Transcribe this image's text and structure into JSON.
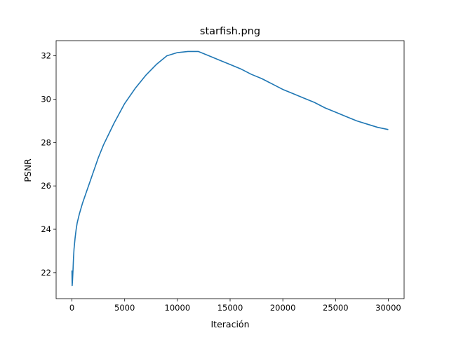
{
  "chart_data": {
    "type": "line",
    "title": "starfish.png",
    "xlabel": "Iteración",
    "ylabel": "PSNR",
    "xlim": [
      -1500,
      31500
    ],
    "ylim": [
      20.8,
      32.7
    ],
    "x_ticks": [
      0,
      5000,
      10000,
      15000,
      20000,
      25000,
      30000
    ],
    "x_tick_labels": [
      "0",
      "5000",
      "10000",
      "15000",
      "20000",
      "25000",
      "30000"
    ],
    "y_ticks": [
      22,
      24,
      26,
      28,
      30,
      32
    ],
    "y_tick_labels": [
      "22",
      "24",
      "26",
      "28",
      "30",
      "32"
    ],
    "grid": false,
    "series": [
      {
        "color": "#1f77b4",
        "x": [
          0,
          20,
          50,
          100,
          150,
          200,
          300,
          400,
          500,
          700,
          1000,
          1500,
          2000,
          2500,
          3000,
          3500,
          4000,
          5000,
          6000,
          7000,
          8000,
          9000,
          10000,
          11000,
          12000,
          13000,
          14000,
          15000,
          16000,
          17000,
          18000,
          19000,
          20000,
          21000,
          22000,
          23000,
          24000,
          25000,
          26000,
          27000,
          28000,
          29000,
          30000
        ],
        "y": [
          22.1,
          21.4,
          21.6,
          22.1,
          22.7,
          23.1,
          23.6,
          24.0,
          24.3,
          24.7,
          25.2,
          25.9,
          26.6,
          27.3,
          27.9,
          28.4,
          28.9,
          29.8,
          30.5,
          31.1,
          31.6,
          32.0,
          32.15,
          32.2,
          32.2,
          32.0,
          31.8,
          31.6,
          31.4,
          31.15,
          30.95,
          30.7,
          30.45,
          30.25,
          30.05,
          29.85,
          29.6,
          29.4,
          29.2,
          29.0,
          28.85,
          28.7,
          28.6
        ]
      }
    ]
  }
}
